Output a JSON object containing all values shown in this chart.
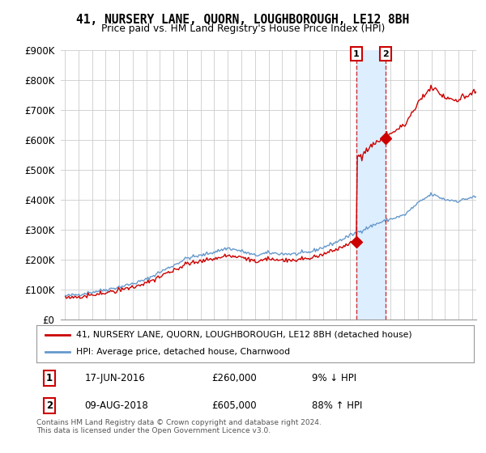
{
  "title": "41, NURSERY LANE, QUORN, LOUGHBOROUGH, LE12 8BH",
  "subtitle": "Price paid vs. HM Land Registry's House Price Index (HPI)",
  "legend_line1": "41, NURSERY LANE, QUORN, LOUGHBOROUGH, LE12 8BH (detached house)",
  "legend_line2": "HPI: Average price, detached house, Charnwood",
  "footnote": "Contains HM Land Registry data © Crown copyright and database right 2024.\nThis data is licensed under the Open Government Licence v3.0.",
  "sale1_date": "17-JUN-2016",
  "sale1_price": "£260,000",
  "sale1_hpi": "9% ↓ HPI",
  "sale2_date": "09-AUG-2018",
  "sale2_price": "£605,000",
  "sale2_hpi": "88% ↑ HPI",
  "red_color": "#cc0000",
  "blue_color": "#6699cc",
  "shade_color": "#ddeeff",
  "background_color": "#ffffff",
  "grid_color": "#cccccc",
  "ylim": [
    0,
    900000
  ],
  "yticks": [
    0,
    100000,
    200000,
    300000,
    400000,
    500000,
    600000,
    700000,
    800000,
    900000
  ],
  "ytick_labels": [
    "£0",
    "£100K",
    "£200K",
    "£300K",
    "£400K",
    "£500K",
    "£600K",
    "£700K",
    "£800K",
    "£900K"
  ],
  "sale1_x": 2016.46,
  "sale1_y": 260000,
  "sale2_x": 2018.62,
  "sale2_y": 605000,
  "xlim_left": 1994.7,
  "xlim_right": 2025.3
}
